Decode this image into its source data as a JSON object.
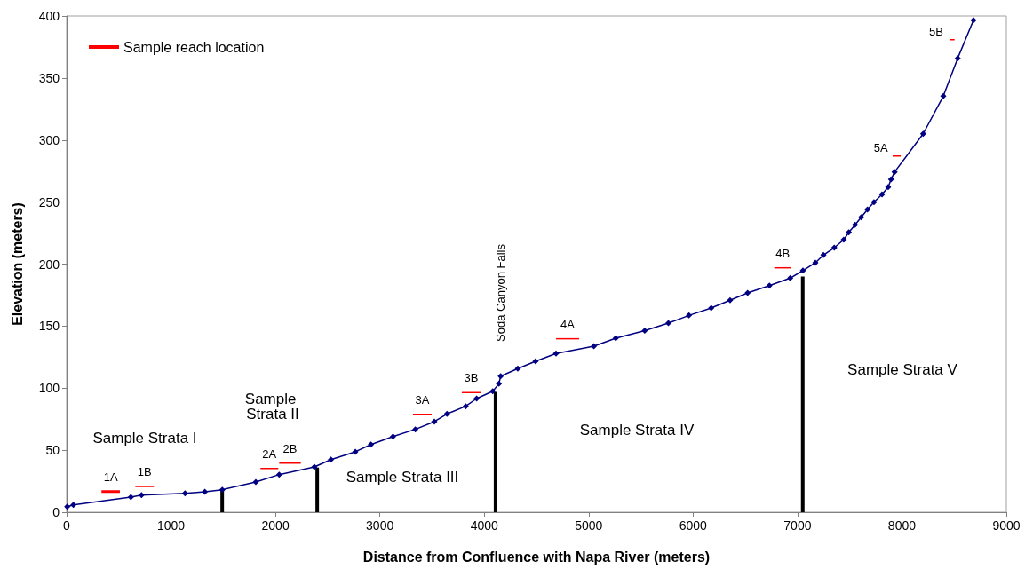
{
  "chart_data": {
    "type": "line",
    "xlabel": "Distance from Confluence with Napa River (meters)",
    "ylabel": "Elevation (meters)",
    "xlim": [
      0,
      9000
    ],
    "xticks": [
      0,
      1000,
      2000,
      3000,
      4000,
      5000,
      6000,
      7000,
      8000,
      9000
    ],
    "ylim": [
      0,
      400
    ],
    "yticks": [
      0,
      50,
      100,
      150,
      200,
      250,
      300,
      350,
      400
    ],
    "grid": false,
    "legend": "top left",
    "series": [
      {
        "color": "#000080",
        "marker": "diamond",
        "x": [
          6,
          65,
          615,
          717,
          1134,
          1324,
          1491,
          1812,
          2036,
          2373,
          2532,
          2765,
          2915,
          3126,
          3340,
          3522,
          3643,
          3822,
          3927,
          4081,
          4140,
          4157,
          4321,
          4491,
          4687,
          5050,
          5259,
          5537,
          5763,
          5960,
          6173,
          6354,
          6522,
          6731,
          6930,
          7052,
          7171,
          7248,
          7352,
          7443,
          7491,
          7551,
          7610,
          7670,
          7732,
          7809,
          7868,
          7896,
          7930,
          8203,
          8396,
          8534,
          8685
        ],
        "values": [
          4.5,
          5.9,
          12.2,
          13.8,
          15.2,
          16.5,
          18.1,
          24.3,
          30.3,
          36.5,
          42.4,
          48.7,
          54.6,
          61.0,
          66.8,
          73.0,
          79.2,
          85.4,
          91.6,
          97.5,
          103.5,
          109.7,
          115.7,
          121.6,
          127.9,
          133.8,
          140.2,
          146.3,
          152.4,
          158.6,
          164.6,
          170.8,
          176.7,
          182.7,
          188.7,
          194.8,
          201.1,
          207.3,
          213.2,
          219.7,
          225.6,
          231.6,
          237.8,
          244.0,
          249.9,
          256.2,
          262.1,
          268.3,
          274.3,
          305.0,
          335.4,
          365.9,
          396.6
        ]
      },
      {
        "type": "line",
        "name": "Sample reach location",
        "color": "#ff0000",
        "marker": "none",
        "x": [
          334,
          510
        ],
        "values": [
          16.7,
          16.7
        ]
      },
      {
        "type": "line",
        "color": "#ff0000",
        "marker": "none",
        "x": [
          658,
          836
        ],
        "values": [
          20.8,
          20.8
        ]
      },
      {
        "type": "line",
        "color": "#ff0000",
        "marker": "none",
        "x": [
          1857,
          2027
        ],
        "values": [
          35.3,
          35.3
        ]
      },
      {
        "type": "line",
        "color": "#ff0000",
        "marker": "none",
        "x": [
          2036,
          2243
        ],
        "values": [
          39.6,
          39.6
        ]
      },
      {
        "type": "line",
        "color": "#ff0000",
        "marker": "none",
        "x": [
          3317,
          3496
        ],
        "values": [
          78.9,
          78.9
        ]
      },
      {
        "type": "line",
        "color": "#ff0000",
        "marker": "none",
        "x": [
          3785,
          3964
        ],
        "values": [
          96.4,
          96.4
        ]
      },
      {
        "type": "line",
        "color": "#ff0000",
        "marker": "none",
        "x": [
          4687,
          4908
        ],
        "values": [
          139.8,
          139.8
        ]
      },
      {
        "type": "line",
        "color": "#ff0000",
        "marker": "none",
        "x": [
          6777,
          6941
        ],
        "values": [
          197,
          197
        ]
      },
      {
        "type": "line",
        "color": "#ff0000",
        "marker": "none",
        "x": [
          7911,
          7988
        ],
        "values": [
          287.2,
          287.2
        ]
      },
      {
        "type": "line",
        "color": "#ff0000",
        "marker": "none",
        "x": [
          8458,
          8504
        ],
        "values": [
          380.9,
          380.9
        ]
      },
      {
        "type": "bar",
        "color": "#000000",
        "x": [
          1490,
          2400,
          4108,
          7050
        ],
        "values": [
          18,
          36,
          97,
          190
        ]
      }
    ],
    "annotations": [
      {
        "text": "1A",
        "x": 422,
        "y": 16.7
      },
      {
        "text": "1B",
        "x": 747,
        "y": 20.8
      },
      {
        "text": "2A",
        "x": 1942,
        "y": 35.3
      },
      {
        "text": "2B",
        "x": 2140,
        "y": 39.6
      },
      {
        "text": "3A",
        "x": 3406,
        "y": 78.9
      },
      {
        "text": "3B",
        "x": 3875,
        "y": 96.4
      },
      {
        "text": "4A",
        "x": 4797,
        "y": 139.8
      },
      {
        "text": "4B",
        "x": 6859,
        "y": 197
      },
      {
        "text": "5A",
        "x": 7950,
        "y": 287.2
      },
      {
        "text": "5B",
        "x": 8481,
        "y": 380.9
      },
      "Soda Canyon Falls",
      "Sample Strata I",
      "Sample Strata II",
      "Sample Strata III",
      "Sample Strata IV",
      "Sample Strata V"
    ]
  }
}
